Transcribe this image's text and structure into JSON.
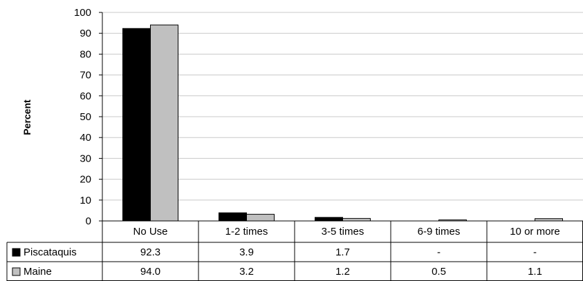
{
  "chart_data": {
    "type": "bar",
    "categories": [
      "No Use",
      "1-2 times",
      "3-5 times",
      "6-9 times",
      "10 or more"
    ],
    "series": [
      {
        "name": "Piscataquis",
        "values": [
          92.3,
          3.9,
          1.7,
          null,
          null
        ],
        "labels": [
          "92.3",
          "3.9",
          "1.7",
          "-",
          "-"
        ],
        "color": "#000000"
      },
      {
        "name": "Maine",
        "values": [
          94.0,
          3.2,
          1.2,
          0.5,
          1.1
        ],
        "labels": [
          "94.0",
          "3.2",
          "1.2",
          "0.5",
          "1.1"
        ],
        "color": "#c0c0c0"
      }
    ],
    "ylabel": "Percent",
    "ylim": [
      0,
      100
    ],
    "yticks": [
      0,
      10,
      20,
      30,
      40,
      50,
      60,
      70,
      80,
      90,
      100
    ],
    "grid": true,
    "legend": "data-table"
  }
}
